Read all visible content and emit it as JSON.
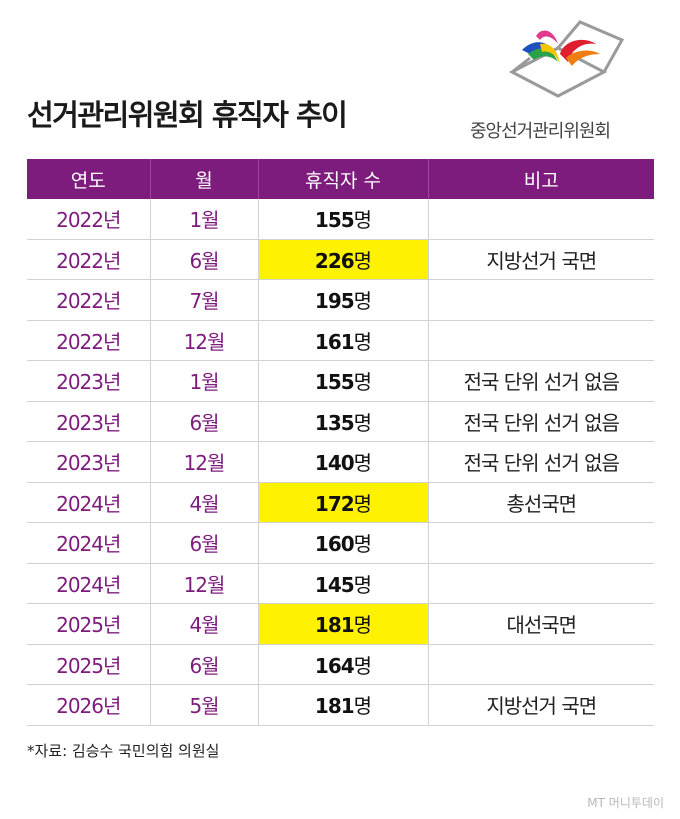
{
  "title": "선거관리위원회 휴직자 추이",
  "org_name": "중앙선거관리위원회",
  "table": {
    "headers": [
      "연도",
      "월",
      "휴직자 수",
      "비고"
    ],
    "rows": [
      {
        "year": "2022년",
        "month": "1월",
        "count_num": "155",
        "count_unit": "명",
        "note": "",
        "highlight": false
      },
      {
        "year": "2022년",
        "month": "6월",
        "count_num": "226",
        "count_unit": "명",
        "note": "지방선거 국면",
        "highlight": true
      },
      {
        "year": "2022년",
        "month": "7월",
        "count_num": "195",
        "count_unit": "명",
        "note": "",
        "highlight": false
      },
      {
        "year": "2022년",
        "month": "12월",
        "count_num": "161",
        "count_unit": "명",
        "note": "",
        "highlight": false
      },
      {
        "year": "2023년",
        "month": "1월",
        "count_num": "155",
        "count_unit": "명",
        "note": "전국 단위 선거 없음",
        "highlight": false
      },
      {
        "year": "2023년",
        "month": "6월",
        "count_num": "135",
        "count_unit": "명",
        "note": "전국 단위 선거 없음",
        "highlight": false
      },
      {
        "year": "2023년",
        "month": "12월",
        "count_num": "140",
        "count_unit": "명",
        "note": "전국 단위 선거 없음",
        "highlight": false
      },
      {
        "year": "2024년",
        "month": "4월",
        "count_num": "172",
        "count_unit": "명",
        "note": "총선국면",
        "highlight": true
      },
      {
        "year": "2024년",
        "month": "6월",
        "count_num": "160",
        "count_unit": "명",
        "note": "",
        "highlight": false
      },
      {
        "year": "2024년",
        "month": "12월",
        "count_num": "145",
        "count_unit": "명",
        "note": "",
        "highlight": false
      },
      {
        "year": "2025년",
        "month": "4월",
        "count_num": "181",
        "count_unit": "명",
        "note": "대선국면",
        "highlight": true
      },
      {
        "year": "2025년",
        "month": "6월",
        "count_num": "164",
        "count_unit": "명",
        "note": "",
        "highlight": false
      },
      {
        "year": "2026년",
        "month": "5월",
        "count_num": "181",
        "count_unit": "명",
        "note": "지방선거 국면",
        "highlight": false
      }
    ]
  },
  "source": "*자료: 김승수 국민의힘 의원실",
  "watermark": "MT 머니투데이",
  "colors": {
    "header_bg": "#7d1c7d",
    "accent_text": "#7d1c7d",
    "highlight": "#fff200"
  },
  "icons": {
    "logo": "election-commission-logo"
  }
}
